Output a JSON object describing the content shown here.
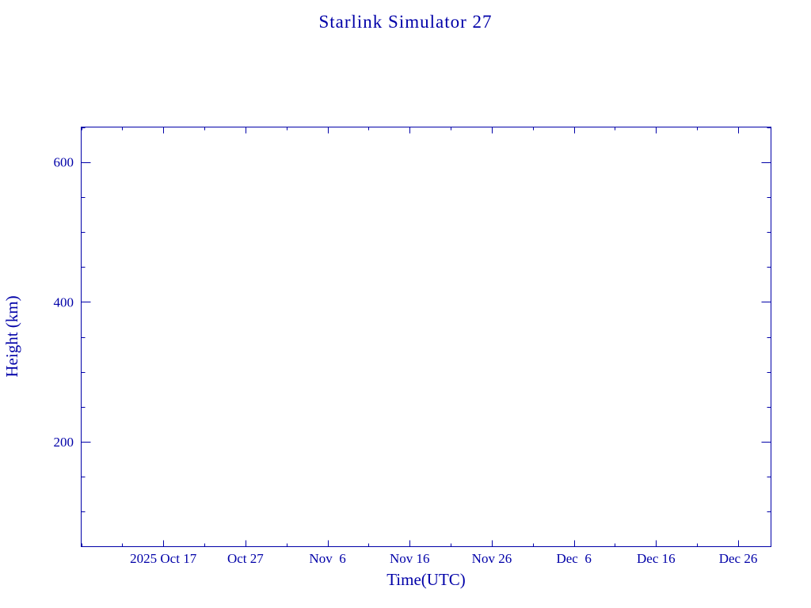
{
  "chart_data": {
    "type": "line",
    "title": "Starlink Simulator 27",
    "xlabel": "Time(UTC)",
    "ylabel": "Height (km)",
    "xlim": [
      "2025-10-07",
      "2025-12-30"
    ],
    "ylim": [
      50,
      650
    ],
    "x_major_ticks": [
      "2025-10-17",
      "2025-10-27",
      "2025-11-06",
      "2025-11-16",
      "2025-11-26",
      "2025-12-06",
      "2025-12-16",
      "2025-12-26"
    ],
    "x_tick_labels": [
      "2025 Oct 17",
      "Oct 27",
      "Nov  6",
      "Nov 16",
      "Nov 26",
      "Dec  6",
      "Dec 16",
      "Dec 26"
    ],
    "y_major_ticks": [
      200,
      400,
      600
    ],
    "y_tick_labels": [
      "200",
      "400",
      "600"
    ],
    "y_minor_step": 50,
    "x_minor_step_days": 5,
    "series": [],
    "grid": false,
    "color": "#0000a8"
  }
}
